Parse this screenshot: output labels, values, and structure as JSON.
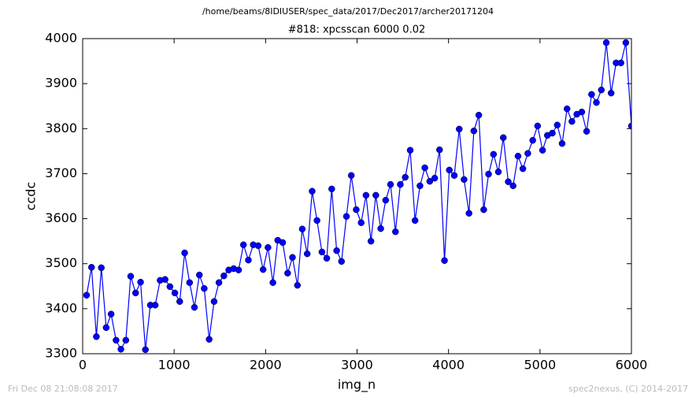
{
  "chart_data": {
    "type": "line",
    "title": "/home/beams/8IDIUSER/spec_data/2017/Dec2017/archer20171204",
    "subtitle": "#818: xpcsscan 6000 0.02",
    "xlabel": "img_n",
    "ylabel": "ccdc",
    "footer_left": "Fri Dec 08 21:08:08 2017",
    "footer_right": "spec2nexus, (C) 2014-2017",
    "xlim": [
      0,
      6000
    ],
    "xticks": [
      0,
      1000,
      2000,
      3000,
      4000,
      5000,
      6000
    ],
    "ylim": [
      3300,
      4000
    ],
    "yticks": [
      3300,
      3400,
      3500,
      3600,
      3700,
      3800,
      3900,
      4000
    ],
    "grid": false,
    "series": [
      {
        "name": "ccdc",
        "color": "#0000ff",
        "x": [
          43,
          97,
          150,
          204,
          257,
          311,
          365,
          418,
          472,
          525,
          579,
          633,
          686,
          740,
          793,
          847,
          901,
          954,
          1008,
          1061,
          1115,
          1169,
          1222,
          1276,
          1329,
          1383,
          1437,
          1490,
          1544,
          1597,
          1651,
          1705,
          1758,
          1812,
          1865,
          1919,
          1973,
          2026,
          2080,
          2133,
          2187,
          2241,
          2294,
          2348,
          2401,
          2455,
          2509,
          2562,
          2616,
          2669,
          2723,
          2777,
          2830,
          2884,
          2937,
          2991,
          3045,
          3098,
          3152,
          3205,
          3259,
          3313,
          3366,
          3420,
          3473,
          3527,
          3581,
          3634,
          3688,
          3741,
          3795,
          3849,
          3902,
          3956,
          4009,
          4063,
          4117,
          4170,
          4224,
          4277,
          4331,
          4385,
          4438,
          4492,
          4545,
          4599,
          4653,
          4706,
          4760,
          4813,
          4867,
          4921,
          4974,
          5028,
          5081,
          5135,
          5189,
          5242,
          5296,
          5349,
          5403,
          5457,
          5510,
          5564,
          5617,
          5671,
          5725,
          5778,
          5832,
          5885,
          5939,
          6000
        ],
        "values": [
          3430,
          3492,
          3338,
          3491,
          3358,
          3388,
          3330,
          3310,
          3330,
          3472,
          3435,
          3459,
          3309,
          3408,
          3408,
          3463,
          3465,
          3449,
          3435,
          3416,
          3524,
          3458,
          3403,
          3475,
          3445,
          3332,
          3416,
          3458,
          3473,
          3486,
          3489,
          3486,
          3542,
          3508,
          3542,
          3540,
          3487,
          3536,
          3458,
          3552,
          3547,
          3479,
          3514,
          3452,
          3577,
          3522,
          3661,
          3596,
          3526,
          3512,
          3666,
          3529,
          3505,
          3605,
          3696,
          3620,
          3591,
          3652,
          3550,
          3652,
          3578,
          3641,
          3676,
          3571,
          3676,
          3692,
          3752,
          3596,
          3673,
          3713,
          3683,
          3690,
          3753,
          3507,
          3708,
          3696,
          3799,
          3687,
          3612,
          3795,
          3830,
          3620,
          3699,
          3743,
          3704,
          3780,
          3682,
          3673,
          3739,
          3711,
          3745,
          3774,
          3806,
          3752,
          3785,
          3790,
          3808,
          3767,
          3844,
          3816,
          3832,
          3837,
          3794,
          3876,
          3858,
          3886,
          3991,
          3879,
          3946,
          3946,
          3991,
          3806
        ]
      }
    ]
  }
}
